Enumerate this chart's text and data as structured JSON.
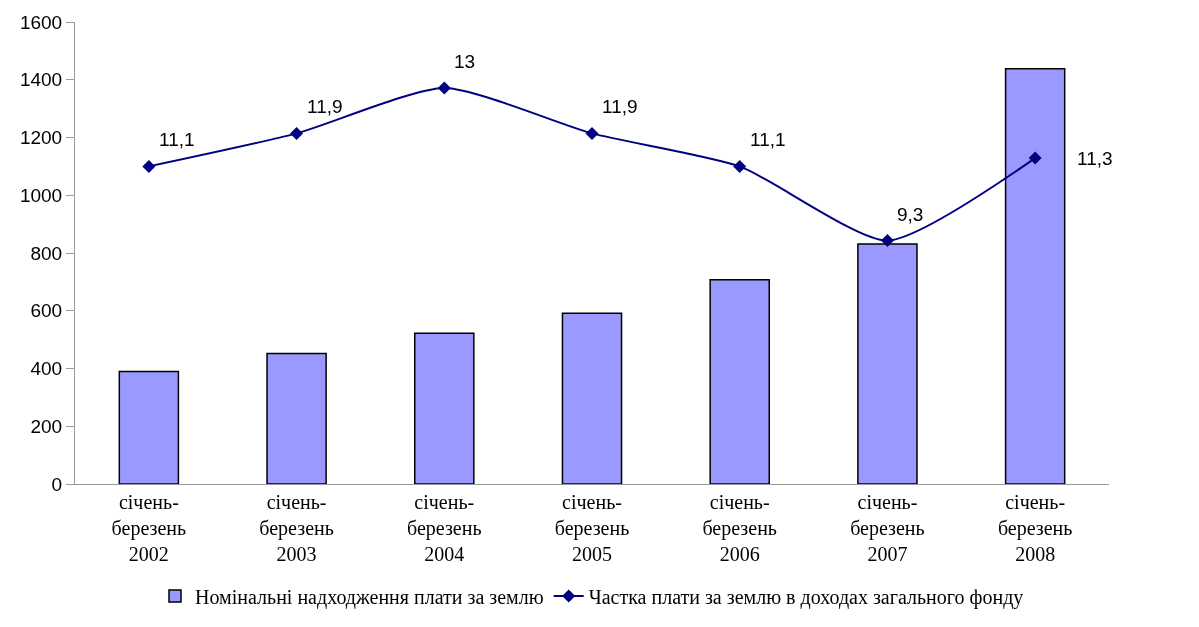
{
  "chart_data": {
    "type": "bar",
    "categories": [
      "січень-\nберезень\n2002",
      "січень-\nберезень\n2003",
      "січень-\nберезень\n2004",
      "січень-\nберезень\n2005",
      "січень-\nберезень\n2006",
      "січень-\nберезень\n2007",
      "січень-\nберезень\n2008"
    ],
    "series": [
      {
        "name": "Номінальні надходження плати за землю",
        "color": "#9999ff",
        "values": [
          390,
          452,
          522,
          591,
          707,
          831,
          1438
        ]
      },
      {
        "name": "Частка плати за землю в доходах загального фонду",
        "type": "line",
        "axis": "y2",
        "color": "#000080",
        "marker": "diamond",
        "data_labels": true,
        "values": [
          11.1,
          11.9,
          13,
          11.9,
          11.1,
          9.3,
          11.3
        ],
        "value_labels": [
          "11,1",
          "11,9",
          "13",
          "11,9",
          "11,1",
          "9,3",
          "11,3"
        ]
      }
    ],
    "ylim": [
      0,
      1600
    ],
    "yticks": [
      0,
      200,
      400,
      600,
      800,
      1000,
      1200,
      1400,
      1600
    ],
    "y2lim": [
      3.4,
      14.6
    ],
    "legend": "bottom"
  }
}
